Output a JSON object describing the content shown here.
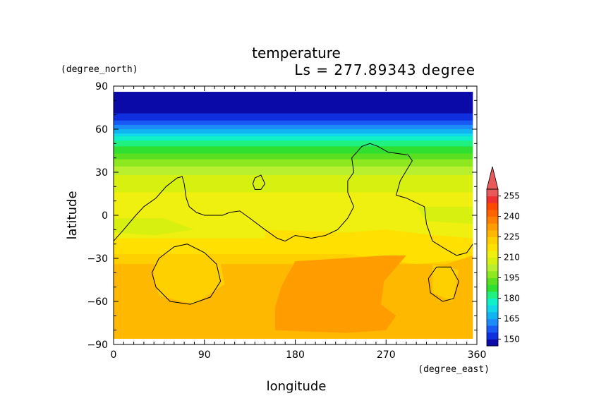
{
  "chart_data": {
    "type": "heatmap",
    "title": "temperature",
    "subtitle": "Ls = 277.89343 degree",
    "xlabel": "longitude",
    "ylabel": "latitude",
    "x_unit": "(degree_east)",
    "y_unit": "(degree_north)",
    "xlim": [
      0,
      360
    ],
    "ylim": [
      -90,
      90
    ],
    "x_ticks": [
      0,
      90,
      180,
      270,
      360
    ],
    "x_tick_labels": [
      "0",
      "90",
      "180",
      "270",
      "360"
    ],
    "y_ticks": [
      90,
      60,
      30,
      0,
      -30,
      -60,
      -90
    ],
    "y_tick_labels": [
      "90",
      "60",
      "30",
      "0",
      "−30",
      "−60",
      "−90"
    ],
    "data_extent": {
      "lon": [
        0,
        356
      ],
      "lat": [
        -86,
        86
      ]
    },
    "colorbar": {
      "levels": [
        145,
        150,
        155,
        160,
        165,
        170,
        175,
        180,
        185,
        190,
        195,
        200,
        205,
        210,
        215,
        220,
        225,
        230,
        235,
        240,
        245,
        250,
        255,
        260
      ],
      "tick_labels": [
        "150",
        "165",
        "180",
        "195",
        "210",
        "225",
        "240",
        "255"
      ],
      "colors": [
        "#0b0ba8",
        "#1030e0",
        "#1a5af4",
        "#1e8cf8",
        "#10b4f0",
        "#10d8e8",
        "#10f0c8",
        "#20f080",
        "#30e030",
        "#5ae020",
        "#8ee820",
        "#b8f030",
        "#d8f010",
        "#f0f010",
        "#ffe000",
        "#ffd000",
        "#ffb800",
        "#ff9c00",
        "#ff8000",
        "#ff6400",
        "#ff4800",
        "#f03030",
        "#e85a5a"
      ],
      "extend": "max"
    },
    "bands": [
      {
        "lat": 90,
        "value": 146
      },
      {
        "lat": 78,
        "value": 146
      },
      {
        "lat": 68,
        "value": 152
      },
      {
        "lat": 60,
        "value": 165
      },
      {
        "lat": 52,
        "value": 180
      },
      {
        "lat": 45,
        "value": 188
      },
      {
        "lat": 38,
        "value": 196
      },
      {
        "lat": 30,
        "value": 204
      },
      {
        "lat": 22,
        "value": 208
      },
      {
        "lat": 10,
        "value": 212
      },
      {
        "lat": -5,
        "value": 212
      },
      {
        "lat": -20,
        "value": 216
      },
      {
        "lat": -30,
        "value": 222
      },
      {
        "lat": -90,
        "value": 224
      }
    ],
    "regions": [
      {
        "value": 213,
        "points": [
          [
            20,
            10
          ],
          [
            90,
            14
          ],
          [
            150,
            6
          ],
          [
            200,
            2
          ],
          [
            240,
            8
          ],
          [
            280,
            12
          ],
          [
            290,
            0
          ],
          [
            230,
            -6
          ],
          [
            170,
            -4
          ],
          [
            110,
            2
          ],
          [
            60,
            4
          ],
          [
            10,
            4
          ]
        ]
      },
      {
        "value": 208,
        "points": [
          [
            0,
            -2
          ],
          [
            50,
            -2
          ],
          [
            80,
            -10
          ],
          [
            40,
            -14
          ],
          [
            0,
            -12
          ]
        ]
      },
      {
        "value": 208,
        "points": [
          [
            300,
            6
          ],
          [
            356,
            6
          ],
          [
            356,
            -6
          ],
          [
            310,
            -4
          ]
        ]
      },
      {
        "value": 218,
        "points": [
          [
            150,
            -10
          ],
          [
            230,
            -12
          ],
          [
            270,
            -10
          ],
          [
            320,
            -14
          ],
          [
            356,
            -16
          ],
          [
            356,
            -30
          ],
          [
            300,
            -34
          ],
          [
            200,
            -24
          ],
          [
            150,
            -20
          ]
        ]
      },
      {
        "value": 229,
        "points": [
          [
            0,
            -34
          ],
          [
            330,
            -34
          ],
          [
            356,
            -28
          ],
          [
            356,
            -86
          ],
          [
            0,
            -86
          ]
        ]
      },
      {
        "value": 233,
        "points": [
          [
            180,
            -32
          ],
          [
            270,
            -28
          ],
          [
            290,
            -28
          ],
          [
            268,
            -46
          ],
          [
            265,
            -62
          ],
          [
            280,
            -70
          ],
          [
            270,
            -80
          ],
          [
            230,
            -82
          ],
          [
            160,
            -80
          ],
          [
            160,
            -64
          ],
          [
            166,
            -50
          ],
          [
            172,
            -42
          ]
        ]
      },
      {
        "value": 222,
        "points": [
          [
            40,
            -30
          ],
          [
            105,
            -30
          ],
          [
            110,
            -48
          ],
          [
            80,
            -62
          ],
          [
            45,
            -56
          ],
          [
            40,
            -44
          ]
        ]
      },
      {
        "value": 222,
        "points": [
          [
            316,
            -34
          ],
          [
            342,
            -38
          ],
          [
            336,
            -60
          ],
          [
            316,
            -54
          ]
        ]
      }
    ],
    "contours": [
      {
        "points": [
          [
            0,
            -18
          ],
          [
            10,
            -10
          ],
          [
            22,
            0
          ],
          [
            30,
            6
          ],
          [
            42,
            12
          ],
          [
            52,
            20
          ],
          [
            63,
            26
          ],
          [
            68,
            27
          ],
          [
            70,
            22
          ],
          [
            72,
            12
          ],
          [
            75,
            6
          ],
          [
            82,
            2
          ],
          [
            90,
            0
          ],
          [
            100,
            0
          ],
          [
            108,
            0
          ],
          [
            115,
            2
          ],
          [
            125,
            3
          ],
          [
            135,
            -2
          ],
          [
            150,
            -10
          ],
          [
            162,
            -16
          ],
          [
            170,
            -18
          ],
          [
            180,
            -14
          ],
          [
            196,
            -16
          ],
          [
            210,
            -14
          ],
          [
            222,
            -10
          ],
          [
            232,
            -2
          ],
          [
            238,
            6
          ],
          [
            232,
            16
          ],
          [
            232,
            24
          ],
          [
            238,
            30
          ],
          [
            236,
            40
          ],
          [
            246,
            48
          ],
          [
            254,
            50
          ],
          [
            262,
            48
          ],
          [
            272,
            44
          ],
          [
            292,
            42
          ],
          [
            296,
            38
          ],
          [
            284,
            24
          ],
          [
            280,
            14
          ],
          [
            290,
            12
          ],
          [
            308,
            6
          ],
          [
            310,
            -6
          ],
          [
            316,
            -18
          ],
          [
            330,
            -24
          ],
          [
            340,
            -28
          ],
          [
            350,
            -26
          ],
          [
            356,
            -20
          ]
        ]
      },
      {
        "closed": true,
        "points": [
          [
            140,
            26
          ],
          [
            146,
            28
          ],
          [
            150,
            22
          ],
          [
            146,
            18
          ],
          [
            140,
            18
          ],
          [
            138,
            22
          ]
        ]
      },
      {
        "closed": true,
        "points": [
          [
            45,
            -30
          ],
          [
            60,
            -22
          ],
          [
            73,
            -20
          ],
          [
            90,
            -26
          ],
          [
            102,
            -34
          ],
          [
            106,
            -46
          ],
          [
            96,
            -57
          ],
          [
            76,
            -62
          ],
          [
            56,
            -60
          ],
          [
            42,
            -50
          ],
          [
            38,
            -40
          ]
        ]
      },
      {
        "closed": true,
        "points": [
          [
            320,
            -36
          ],
          [
            334,
            -36
          ],
          [
            342,
            -46
          ],
          [
            337,
            -58
          ],
          [
            326,
            -60
          ],
          [
            314,
            -54
          ],
          [
            312,
            -44
          ]
        ]
      }
    ]
  }
}
